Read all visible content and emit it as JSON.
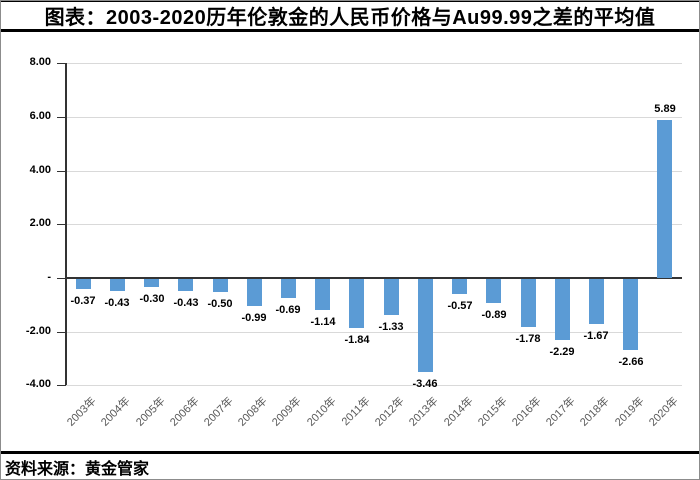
{
  "page": {
    "title": "图表：2003-2020历年伦敦金的人民币价格与Au99.99之差的平均值",
    "source": "资料来源：黄金管家"
  },
  "chart_data": {
    "type": "bar",
    "title": "2003-2020历年伦敦金的人民币价格与Au99.99之差的平均值",
    "categories": [
      "2003年",
      "2004年",
      "2005年",
      "2006年",
      "2007年",
      "2008年",
      "2009年",
      "2010年",
      "2011年",
      "2012年",
      "2013年",
      "2014年",
      "2015年",
      "2016年",
      "2017年",
      "2018年",
      "2019年",
      "2020年"
    ],
    "values": [
      -0.37,
      -0.43,
      -0.3,
      -0.43,
      -0.5,
      -0.99,
      -0.69,
      -1.14,
      -1.84,
      -1.33,
      -3.46,
      -0.57,
      -0.89,
      -1.78,
      -2.29,
      -1.67,
      -2.66,
      5.89
    ],
    "xlabel": "",
    "ylabel": "",
    "ylim": [
      -4,
      8
    ],
    "ytick_step": 2,
    "ytick_values": [
      8,
      6,
      4,
      2,
      0,
      -2,
      -4
    ],
    "ytick_labels": [
      "8.00",
      "6.00",
      "4.00",
      "2.00",
      "-",
      "-2.00",
      "-4.00"
    ],
    "grid": true,
    "legend": "none",
    "data_labels": true,
    "label_decimals": 2,
    "colors": {
      "bar": "#5B9BD5",
      "grid": "#D9D9D9",
      "axis": "#333333",
      "xtick_text": "#595959",
      "text": "#000000"
    }
  }
}
